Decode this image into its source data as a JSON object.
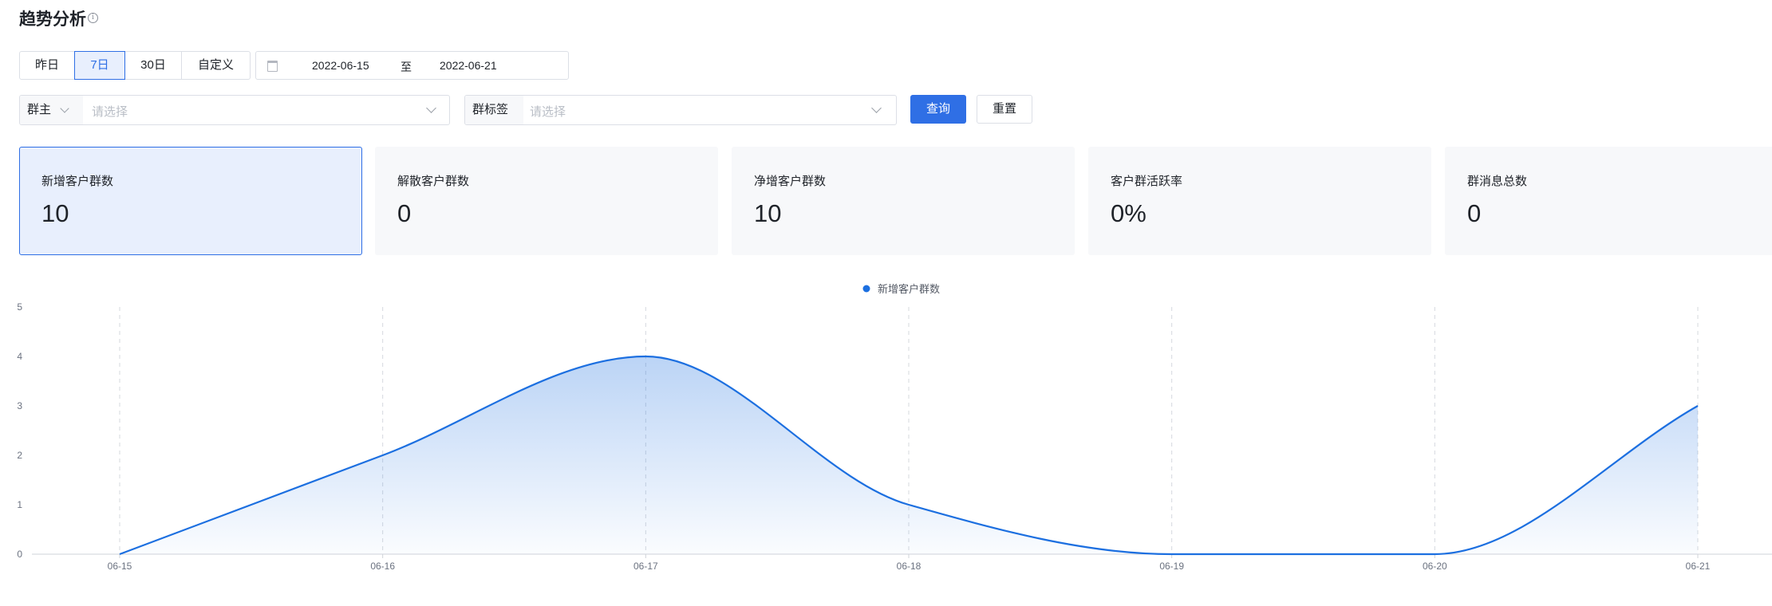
{
  "header": {
    "title": "趋势分析",
    "info_glyph": "i"
  },
  "range_tabs": [
    {
      "label": "昨日",
      "active": false
    },
    {
      "label": "7日",
      "active": true
    },
    {
      "label": "30日",
      "active": false
    },
    {
      "label": "自定义",
      "active": false
    }
  ],
  "date_range": {
    "start": "2022-06-15",
    "separator": "至",
    "end": "2022-06-21",
    "icon": "calendar-icon"
  },
  "filters": {
    "owner": {
      "label": "群主",
      "placeholder": "请选择"
    },
    "tag": {
      "label": "群标签",
      "placeholder": "请选择"
    }
  },
  "actions": {
    "query": "查询",
    "reset": "重置"
  },
  "cards": [
    {
      "label": "新增客户群数",
      "value": "10",
      "active": true
    },
    {
      "label": "解散客户群数",
      "value": "0",
      "active": false
    },
    {
      "label": "净增客户群数",
      "value": "10",
      "active": false
    },
    {
      "label": "客户群活跃率",
      "value": "0%",
      "active": false
    },
    {
      "label": "群消息总数",
      "value": "0",
      "active": false
    }
  ],
  "colors": {
    "accent": "#2f6fe5",
    "line": "#1c6fe0",
    "card_bg": "#f7f8fa",
    "card_active_bg": "#e8effd"
  },
  "chart_data": {
    "type": "area",
    "categories": [
      "06-15",
      "06-16",
      "06-17",
      "06-18",
      "06-19",
      "06-20",
      "06-21"
    ],
    "series": [
      {
        "name": "新增客户群数",
        "values": [
          0,
          2,
          4,
          1,
          0,
          0,
          3
        ]
      }
    ],
    "ylim": [
      0,
      5
    ],
    "yticks": [
      0,
      1,
      2,
      3,
      4,
      5
    ],
    "smooth": true,
    "grid": "vertical dashed",
    "legend": "top-center"
  }
}
